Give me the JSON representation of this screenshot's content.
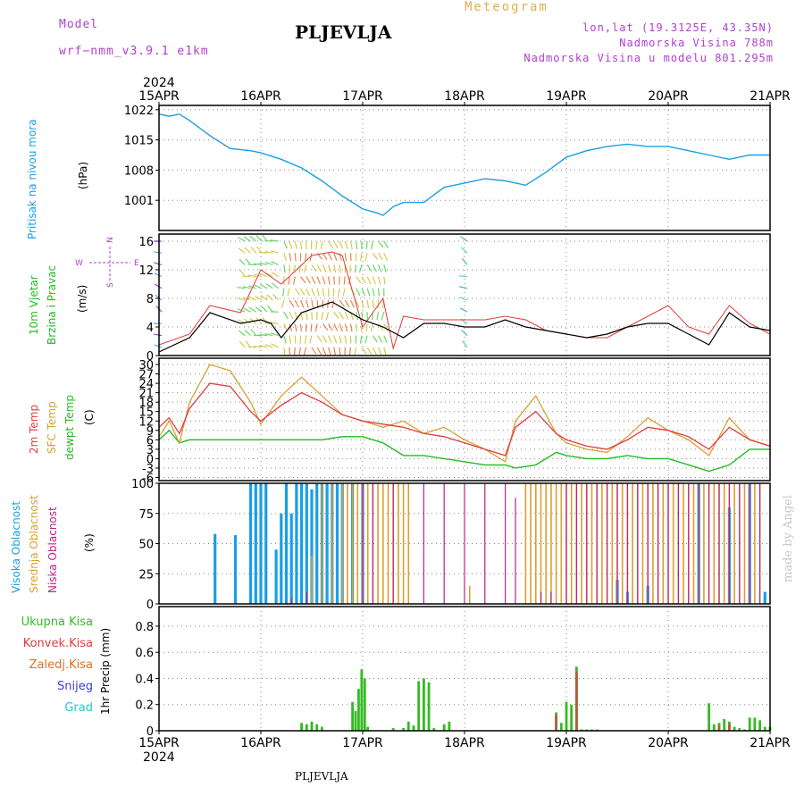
{
  "header": {
    "model_label": "Model",
    "model_name": "wrf−nmm_v3.9.1  e1km",
    "title": "Meteogram",
    "location": "PLJEVLJA",
    "coords": "lon,lat (19.3125E, 43.35N)",
    "elevation": "Nadmorska Visina 788m",
    "model_elevation": "Nadmorska Visina u modelu 801.295m",
    "footer_location": "PLJEVLJA",
    "watermark": "made by Angel"
  },
  "colors": {
    "pressure": "#1a9ee6",
    "temp2m": "#e03c3c",
    "sfc": "#d9a030",
    "dewpt": "#22bb22",
    "cloud_high": "#1a9ee6",
    "cloud_mid": "#d9a030",
    "cloud_low": "#c0208a",
    "precip_total": "#33bb22",
    "precip_conv": "#e03c3c",
    "precip_frz": "#e07020",
    "snow": "#3a3ae0",
    "hail": "#22c8c8",
    "purple_text": "#b040d0",
    "title_text": "#e0b050"
  },
  "time_axis": {
    "year": "2024",
    "ticks": [
      "15APR",
      "16APR",
      "17APR",
      "18APR",
      "19APR",
      "20APR",
      "21APR"
    ]
  },
  "panels": {
    "pressure": {
      "label": "Pritisak na nivou mora",
      "unit": "(hPa)"
    },
    "wind": {
      "label_a": "10m Vjetar",
      "label_b": "Brzina i Pravac",
      "unit": "(m/s)",
      "compass": {
        "n": "N",
        "s": "S",
        "e": "E",
        "w": "W"
      }
    },
    "temp": {
      "label_a": "2m Temp",
      "label_b": "SFC Temp",
      "label_c": "dewpt Temp",
      "unit": "(C)"
    },
    "cloud": {
      "label_a": "Visoka Oblacnost",
      "label_b": "Srednja Oblacnost",
      "label_c": "Niska Oblacnost",
      "unit": "(%)"
    },
    "precip": {
      "legend": [
        "Ukupna Kisa",
        "Konvek.Kisa",
        "Zaledj.Kisa",
        "Snijeg",
        "Grad"
      ],
      "unit": "1hr Precip (mm)"
    }
  },
  "chart_data": [
    {
      "type": "line",
      "name": "pressure",
      "xlabel": "",
      "ylabel": "(hPa)",
      "ylim": [
        994,
        1023
      ],
      "yticks": [
        1001,
        1008,
        1015,
        1022
      ],
      "x_days": [
        0,
        0.1,
        0.2,
        0.3,
        0.5,
        0.7,
        0.9,
        1.0,
        1.2,
        1.4,
        1.6,
        1.8,
        2.0,
        2.15,
        2.2,
        2.3,
        2.4,
        2.6,
        2.8,
        3.0,
        3.2,
        3.4,
        3.6,
        3.8,
        4.0,
        4.2,
        4.4,
        4.6,
        4.8,
        5.0,
        5.2,
        5.4,
        5.6,
        5.8,
        6.0
      ],
      "y": [
        1021,
        1020.5,
        1021,
        1019.5,
        1016,
        1013,
        1012.5,
        1012,
        1010.5,
        1008.5,
        1005.5,
        1002,
        999,
        998,
        997.5,
        999.5,
        1000.5,
        1000.5,
        1004,
        1005,
        1006,
        1005.5,
        1004.5,
        1007.5,
        1011,
        1012.5,
        1013.5,
        1014,
        1013.5,
        1013.5,
        1012.5,
        1011.5,
        1010.5,
        1011.5,
        1011.5
      ]
    },
    {
      "type": "line",
      "name": "wind",
      "xlabel": "",
      "ylabel": "(m/s)",
      "ylim": [
        0,
        17
      ],
      "yticks": [
        0,
        4,
        8,
        12,
        16
      ],
      "series": [
        {
          "name": "speed",
          "x_days": [
            0,
            0.3,
            0.5,
            0.8,
            1.0,
            1.1,
            1.2,
            1.4,
            1.7,
            2.0,
            2.2,
            2.4,
            2.6,
            2.8,
            3.0,
            3.2,
            3.4,
            3.6,
            3.8,
            4.0,
            4.2,
            4.4,
            4.6,
            4.8,
            5.0,
            5.2,
            5.4,
            5.6,
            5.8,
            6.0
          ],
          "y": [
            0.5,
            2.5,
            6,
            4.5,
            5,
            4.5,
            2.5,
            6,
            7.5,
            5,
            4,
            2.5,
            4.5,
            4.5,
            4,
            4,
            5,
            4,
            3.5,
            3,
            2.5,
            3,
            4,
            4.5,
            4.5,
            3,
            1.5,
            6,
            4,
            3.5
          ]
        },
        {
          "name": "gust",
          "x_days": [
            0,
            0.3,
            0.5,
            0.8,
            1.0,
            1.2,
            1.5,
            1.7,
            1.8,
            2.0,
            2.2,
            2.3,
            2.4,
            2.6,
            2.8,
            3.0,
            3.2,
            3.4,
            3.6,
            3.8,
            4.0,
            4.2,
            4.4,
            4.6,
            4.8,
            5.0,
            5.2,
            5.4,
            5.6,
            5.8,
            6.0
          ],
          "y": [
            1.5,
            3,
            7,
            6,
            12,
            10,
            14,
            14.5,
            14,
            4,
            8,
            1,
            5.5,
            5,
            5,
            5,
            5,
            5.5,
            5,
            3.5,
            3,
            2.5,
            2.5,
            4,
            5.5,
            7,
            4,
            3,
            7,
            4.5,
            3
          ]
        }
      ]
    },
    {
      "type": "line",
      "name": "temperature",
      "xlabel": "",
      "ylabel": "(C)",
      "ylim": [
        -7,
        32
      ],
      "yticks": [
        -6,
        -3,
        0,
        3,
        6,
        9,
        12,
        15,
        18,
        21,
        24,
        27,
        30
      ],
      "series": [
        {
          "name": "2m",
          "x_days": [
            0,
            0.1,
            0.2,
            0.3,
            0.5,
            0.7,
            0.9,
            1.0,
            1.2,
            1.4,
            1.6,
            1.8,
            2.0,
            2.2,
            2.4,
            2.6,
            2.8,
            3.0,
            3.2,
            3.4,
            3.5,
            3.7,
            3.9,
            4.0,
            4.2,
            4.4,
            4.6,
            4.8,
            5.0,
            5.2,
            5.4,
            5.6,
            5.8,
            6.0
          ],
          "y": [
            10,
            13,
            8,
            16,
            24,
            23,
            15,
            12,
            17,
            21,
            18,
            14,
            12,
            11,
            10,
            8,
            7,
            5,
            3,
            1,
            10,
            15,
            8,
            6,
            4,
            3,
            6,
            10,
            9,
            7,
            3,
            10,
            6,
            4
          ]
        },
        {
          "name": "SFC",
          "x_days": [
            0,
            0.1,
            0.2,
            0.3,
            0.5,
            0.7,
            0.9,
            1.0,
            1.2,
            1.4,
            1.6,
            1.8,
            2.0,
            2.2,
            2.4,
            2.6,
            2.8,
            3.0,
            3.2,
            3.4,
            3.5,
            3.7,
            3.9,
            4.0,
            4.2,
            4.4,
            4.6,
            4.8,
            5.0,
            5.2,
            5.4,
            5.6,
            5.8,
            6.0
          ],
          "y": [
            7,
            12,
            5,
            18,
            30,
            28,
            18,
            11,
            20,
            26,
            20,
            14,
            12,
            10,
            12,
            8,
            10,
            6,
            3,
            -1,
            12,
            20,
            8,
            5,
            3,
            2,
            7,
            13,
            9,
            6,
            1,
            13,
            6,
            4
          ]
        },
        {
          "name": "dewpt",
          "x_days": [
            0,
            0.1,
            0.2,
            0.3,
            0.5,
            0.7,
            0.9,
            1.0,
            1.2,
            1.4,
            1.6,
            1.8,
            2.0,
            2.2,
            2.4,
            2.6,
            2.8,
            3.0,
            3.2,
            3.4,
            3.5,
            3.7,
            3.9,
            4.0,
            4.2,
            4.4,
            4.6,
            4.8,
            5.0,
            5.2,
            5.4,
            5.6,
            5.8,
            6.0
          ],
          "y": [
            6,
            9,
            5,
            6,
            6,
            6,
            6,
            6,
            6,
            6,
            6,
            7,
            7,
            5,
            1,
            1,
            0,
            -1,
            -2,
            -2,
            -3,
            -2,
            2,
            1,
            0,
            0,
            1,
            0,
            0,
            -2,
            -4,
            -2,
            3,
            3
          ]
        }
      ]
    },
    {
      "type": "bar",
      "name": "cloud_cover",
      "xlabel": "",
      "ylabel": "(%)",
      "ylim": [
        0,
        100
      ],
      "yticks": [
        0,
        25,
        50,
        75,
        100
      ],
      "series": [
        {
          "name": "high",
          "x_days": [
            0.55,
            0.75,
            0.9,
            0.95,
            1.0,
            1.05,
            1.15,
            1.2,
            1.25,
            1.3,
            1.35,
            1.4,
            1.45,
            1.5,
            1.55,
            1.6,
            1.65,
            1.7,
            1.75,
            1.8,
            1.9,
            2.0,
            4.5,
            4.6,
            4.8,
            5.3,
            5.6,
            5.8,
            5.95
          ],
          "y": [
            58,
            57,
            100,
            100,
            100,
            100,
            45,
            75,
            100,
            75,
            100,
            100,
            100,
            95,
            100,
            100,
            100,
            100,
            100,
            100,
            100,
            100,
            20,
            10,
            15,
            100,
            80,
            100,
            10
          ]
        },
        {
          "name": "mid",
          "x_days": [
            1.5,
            1.6,
            1.7,
            1.8,
            1.85,
            1.9,
            1.95,
            2.0,
            2.05,
            2.1,
            2.15,
            2.2,
            2.25,
            2.3,
            2.35,
            2.4,
            2.45,
            3.05,
            3.6,
            3.65,
            3.7,
            3.75,
            3.8,
            3.85,
            3.9,
            3.95,
            4.0,
            4.05,
            4.1,
            4.15,
            4.2,
            4.25,
            4.3,
            4.35,
            4.4,
            4.45,
            4.5,
            4.55,
            4.6,
            4.65,
            4.7,
            4.75,
            4.8,
            4.85,
            4.9,
            4.95,
            5.0,
            5.05,
            5.1,
            5.15,
            5.2,
            5.25,
            5.3,
            5.35,
            5.4,
            5.45,
            5.5,
            5.55,
            5.6,
            5.65,
            5.7,
            5.75,
            5.8,
            5.85,
            5.9
          ],
          "y": [
            40,
            100,
            100,
            100,
            100,
            100,
            100,
            100,
            100,
            100,
            100,
            100,
            100,
            100,
            100,
            100,
            100,
            15,
            100,
            100,
            100,
            100,
            100,
            100,
            100,
            100,
            100,
            100,
            100,
            100,
            100,
            100,
            100,
            100,
            100,
            100,
            100,
            100,
            100,
            100,
            100,
            100,
            100,
            100,
            100,
            100,
            100,
            100,
            100,
            100,
            100,
            100,
            100,
            100,
            100,
            100,
            100,
            100,
            100,
            100,
            100,
            100,
            100,
            100,
            100
          ]
        },
        {
          "name": "low",
          "x_days": [
            1.3,
            1.45,
            2.0,
            2.1,
            2.3,
            2.6,
            2.8,
            3.0,
            3.2,
            3.4,
            3.5,
            3.75,
            3.85,
            4.0,
            4.1,
            4.2,
            4.3,
            4.4,
            4.5,
            4.6,
            4.7,
            4.8,
            4.9,
            5.0,
            5.1,
            5.2,
            5.3,
            5.4,
            5.5,
            5.6,
            5.7,
            5.8,
            5.9
          ],
          "y": [
            5,
            10,
            100,
            100,
            100,
            100,
            100,
            100,
            100,
            100,
            88,
            10,
            10,
            100,
            100,
            100,
            100,
            100,
            100,
            100,
            100,
            100,
            100,
            100,
            100,
            100,
            100,
            100,
            100,
            100,
            100,
            100,
            100
          ]
        }
      ]
    },
    {
      "type": "bar",
      "name": "precip",
      "xlabel": "",
      "ylabel": "1hr Precip (mm)",
      "ylim": [
        0,
        0.95
      ],
      "yticks": [
        0,
        0.2,
        0.4,
        0.6,
        0.8
      ],
      "series": [
        {
          "name": "Ukupna Kisa",
          "x_days": [
            1.4,
            1.45,
            1.5,
            1.55,
            1.6,
            1.9,
            1.93,
            1.96,
            1.99,
            2.02,
            2.05,
            2.3,
            2.4,
            2.45,
            2.5,
            2.55,
            2.6,
            2.65,
            2.7,
            2.8,
            2.85,
            3.9,
            3.95,
            4.0,
            4.05,
            4.1,
            4.15,
            4.2,
            4.25,
            4.3,
            5.4,
            5.45,
            5.5,
            5.55,
            5.6,
            5.65,
            5.7,
            5.75,
            5.8,
            5.85,
            5.9,
            5.95,
            6.0
          ],
          "y": [
            0.06,
            0.05,
            0.07,
            0.05,
            0.03,
            0.22,
            0.15,
            0.32,
            0.47,
            0.4,
            0.03,
            0.02,
            0.02,
            0.07,
            0.04,
            0.38,
            0.4,
            0.37,
            0.02,
            0.05,
            0.07,
            0.14,
            0.06,
            0.22,
            0.2,
            0.49,
            0.01,
            0.01,
            0.01,
            0.01,
            0.21,
            0.05,
            0.06,
            0.09,
            0.07,
            0.03,
            0.02,
            0.01,
            0.1,
            0.1,
            0.08,
            0.03,
            0.03
          ]
        },
        {
          "name": "Konvek.Kisa",
          "x_days": [
            3.9,
            4.1,
            5.5,
            5.6
          ],
          "y": [
            0.12,
            0.45,
            0.04,
            0.05
          ]
        }
      ]
    }
  ]
}
